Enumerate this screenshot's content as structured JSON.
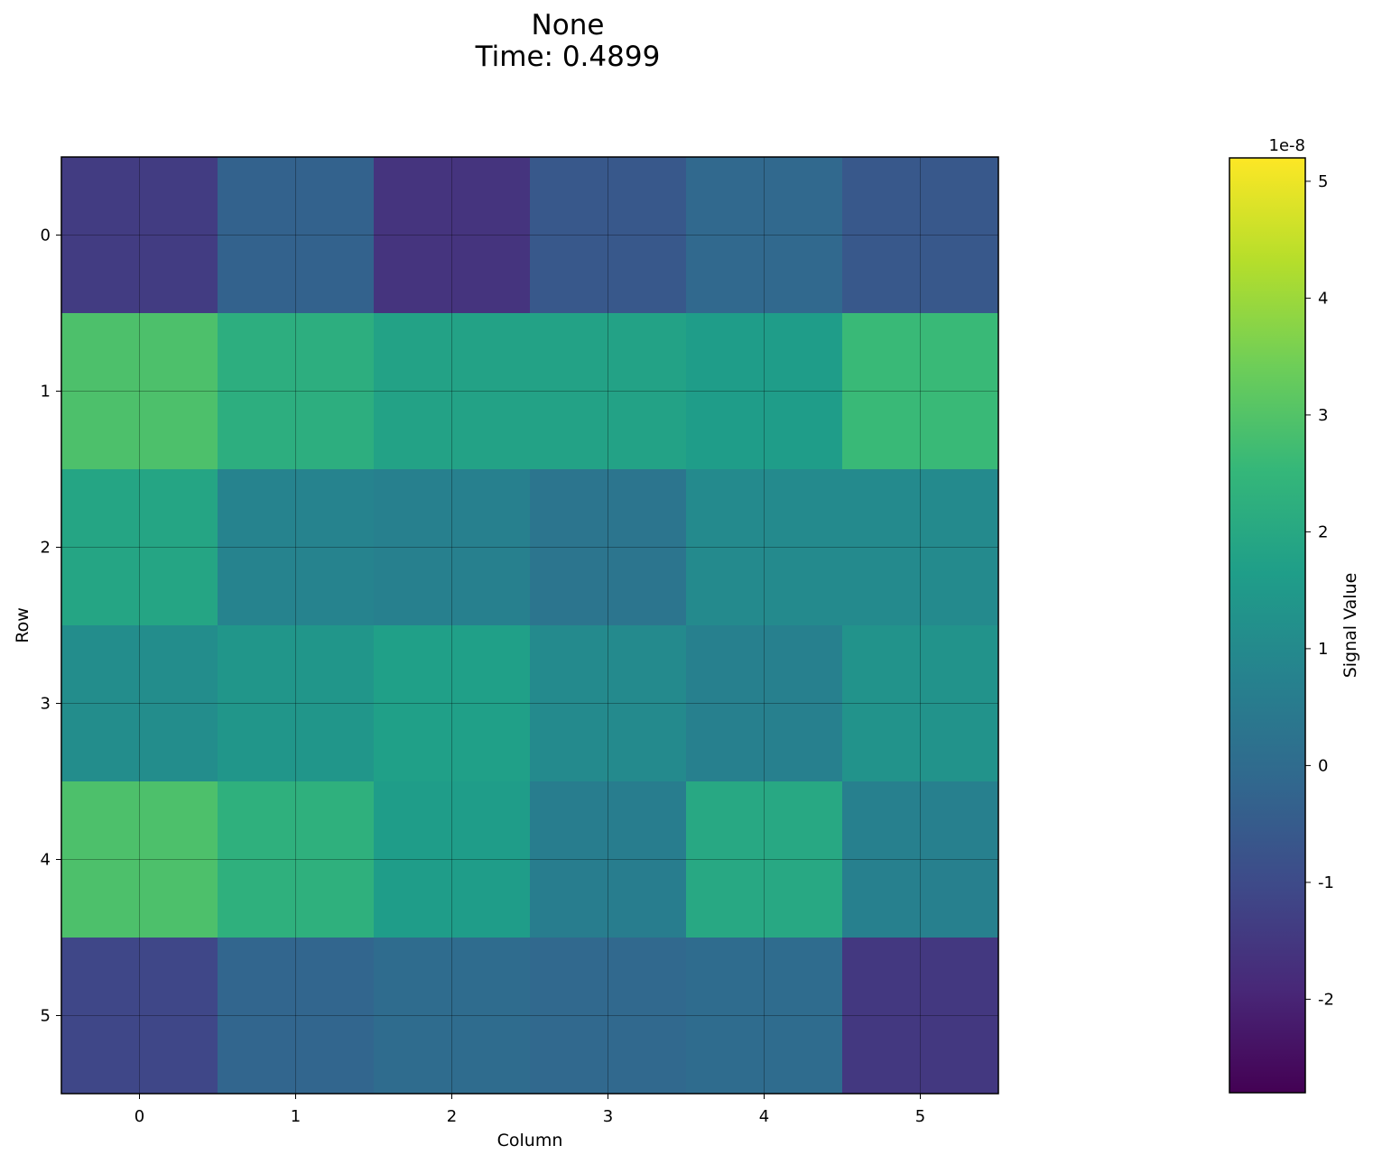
{
  "chart_data": {
    "type": "heatmap",
    "title": "None",
    "subtitle": "Time: 0.4899",
    "xlabel": "Column",
    "ylabel": "Row",
    "x_categories": [
      "0",
      "1",
      "2",
      "3",
      "4",
      "5"
    ],
    "y_categories": [
      "0",
      "1",
      "2",
      "3",
      "4",
      "5"
    ],
    "values": [
      [
        -1.4,
        -0.3,
        -1.6,
        -0.6,
        -0.1,
        -0.6
      ],
      [
        2.9,
        2.2,
        1.8,
        1.8,
        1.6,
        2.6
      ],
      [
        1.9,
        0.8,
        0.7,
        0.3,
        1.0,
        1.0
      ],
      [
        1.1,
        1.4,
        1.7,
        1.0,
        0.7,
        1.3
      ],
      [
        2.9,
        2.3,
        1.6,
        0.6,
        2.0,
        0.7
      ],
      [
        -1.1,
        -0.2,
        -0.0,
        -0.1,
        -0.0,
        -1.5
      ]
    ],
    "colorscale": "viridis",
    "colorbar": {
      "label": "Signal Value",
      "scale_label": "1e-8",
      "range": [
        -2.8,
        5.2
      ],
      "ticks": [
        -2,
        -1,
        0,
        1,
        2,
        3,
        4,
        5
      ],
      "tick_labels": [
        "-2",
        "-1",
        "0",
        "1",
        "2",
        "3",
        "4",
        "5"
      ]
    },
    "grid": true
  }
}
